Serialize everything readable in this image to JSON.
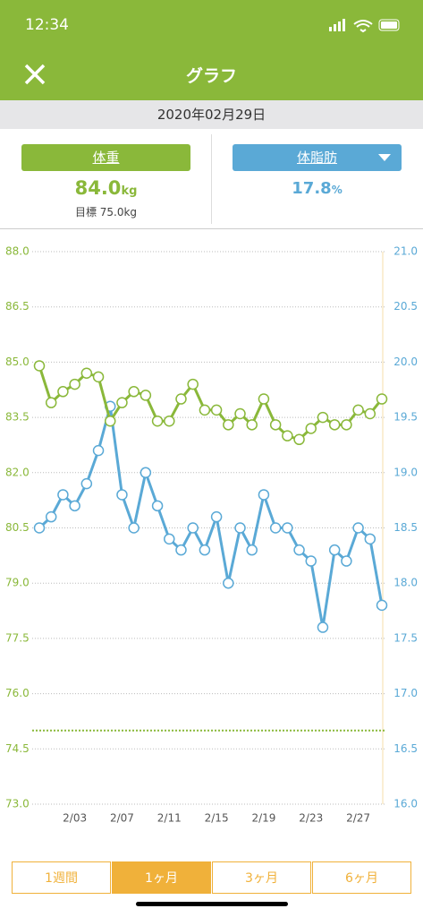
{
  "status": {
    "time": "12:34"
  },
  "header": {
    "title": "グラフ"
  },
  "date": "2020年02月29日",
  "tabs": [
    {
      "label": "体重",
      "value": "84.0",
      "unit": "kg",
      "target": "目標 75.0kg"
    },
    {
      "label": "体脂肪",
      "value": "17.8",
      "unit": "%"
    }
  ],
  "chart_data": {
    "type": "line",
    "categories": [
      null,
      null,
      null,
      "2/03",
      null,
      null,
      null,
      "2/07",
      null,
      null,
      null,
      "2/11",
      null,
      null,
      null,
      "2/15",
      null,
      null,
      null,
      "2/19",
      null,
      null,
      null,
      "2/23",
      null,
      null,
      null,
      "2/27",
      null,
      null
    ],
    "series": [
      {
        "name": "体重",
        "color": "#8ab83a",
        "values": [
          84.9,
          83.9,
          84.2,
          84.4,
          84.7,
          84.6,
          83.4,
          83.9,
          84.2,
          84.1,
          83.4,
          83.4,
          84.0,
          84.4,
          83.7,
          83.7,
          83.3,
          83.6,
          83.3,
          84.0,
          83.3,
          83.0,
          82.9,
          83.2,
          83.5,
          83.3,
          83.3,
          83.7,
          83.6,
          84.0
        ]
      },
      {
        "name": "体脂肪",
        "color": "#5aa9d6",
        "axis": "y2",
        "values": [
          18.5,
          18.6,
          18.8,
          18.7,
          18.9,
          19.2,
          19.6,
          18.8,
          18.5,
          19.0,
          18.7,
          18.4,
          18.3,
          18.5,
          18.3,
          18.6,
          18.0,
          18.5,
          18.3,
          18.8,
          18.5,
          18.5,
          18.3,
          18.2,
          17.6,
          18.3,
          18.2,
          18.5,
          18.4,
          17.8
        ]
      }
    ],
    "target": 75.0,
    "ylim": [
      73,
      88
    ],
    "yticks": [
      {
        "value": 73,
        "label": "73.0"
      },
      {
        "value": 74.5,
        "label": "74.5"
      },
      {
        "value": 76,
        "label": "76.0"
      },
      {
        "value": 77.5,
        "label": "77.5"
      },
      {
        "value": 79,
        "label": "79.0"
      },
      {
        "value": 80.5,
        "label": "80.5"
      },
      {
        "value": 82,
        "label": "82.0"
      },
      {
        "value": 83.5,
        "label": "83.5"
      },
      {
        "value": 85,
        "label": "85.0"
      },
      {
        "value": 86.5,
        "label": "86.5"
      },
      {
        "value": 88,
        "label": "88.0"
      }
    ],
    "y2lim": [
      16,
      21
    ],
    "y2ticks": [
      {
        "value": 16,
        "label": "16.0"
      },
      {
        "value": 16.5,
        "label": "16.5"
      },
      {
        "value": 17,
        "label": "17.0"
      },
      {
        "value": 17.5,
        "label": "17.5"
      },
      {
        "value": 18,
        "label": "18.0"
      },
      {
        "value": 18.5,
        "label": "18.5"
      },
      {
        "value": 19,
        "label": "19.0"
      },
      {
        "value": 19.5,
        "label": "19.5"
      },
      {
        "value": 20,
        "label": "20.0"
      },
      {
        "value": 20.5,
        "label": "20.5"
      },
      {
        "value": 21,
        "label": "21.0"
      }
    ],
    "grid": true
  },
  "periods": [
    "1週間",
    "1ヶ月",
    "3ヶ月",
    "6ヶ月"
  ],
  "selected_period": 1
}
